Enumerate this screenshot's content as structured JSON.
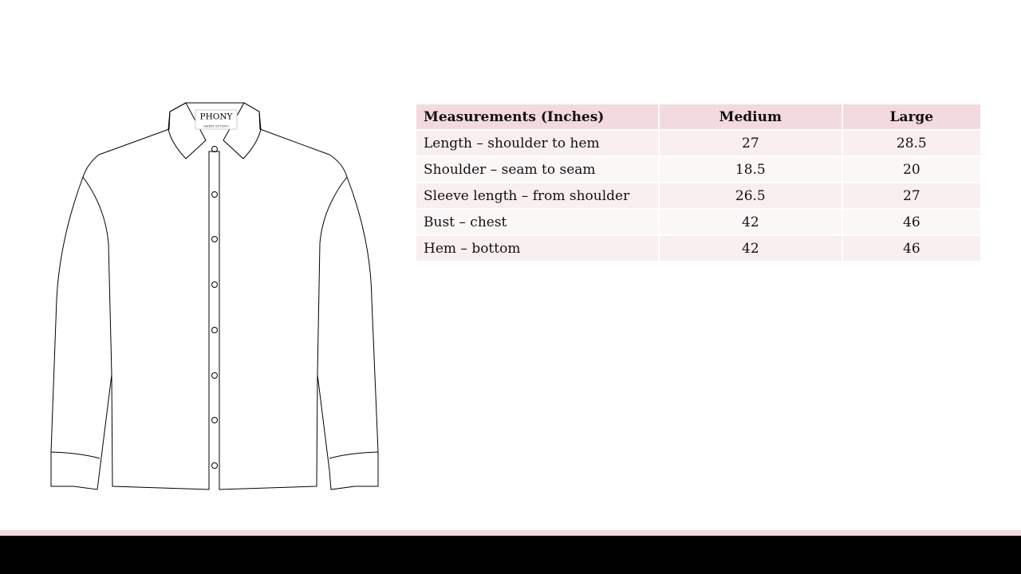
{
  "shirt": {
    "brand": "PHONY",
    "brand_sub": "SHIRT STUDIO"
  },
  "table": {
    "headers": [
      "Measurements (Inches)",
      "Medium",
      "Large"
    ],
    "rows": [
      [
        "Length – shoulder to hem",
        "27",
        "28.5"
      ],
      [
        "Shoulder – seam to seam",
        "18.5",
        "20"
      ],
      [
        "Sleeve length – from shoulder",
        "26.5",
        "27"
      ],
      [
        "Bust – chest",
        "42",
        "46"
      ],
      [
        "Hem – bottom",
        "42",
        "46"
      ]
    ]
  },
  "colors": {
    "header_bg": "#f2dade",
    "row_odd": "#f9eff0",
    "row_even": "#fcf7f7",
    "footer_bar": "#000000"
  }
}
